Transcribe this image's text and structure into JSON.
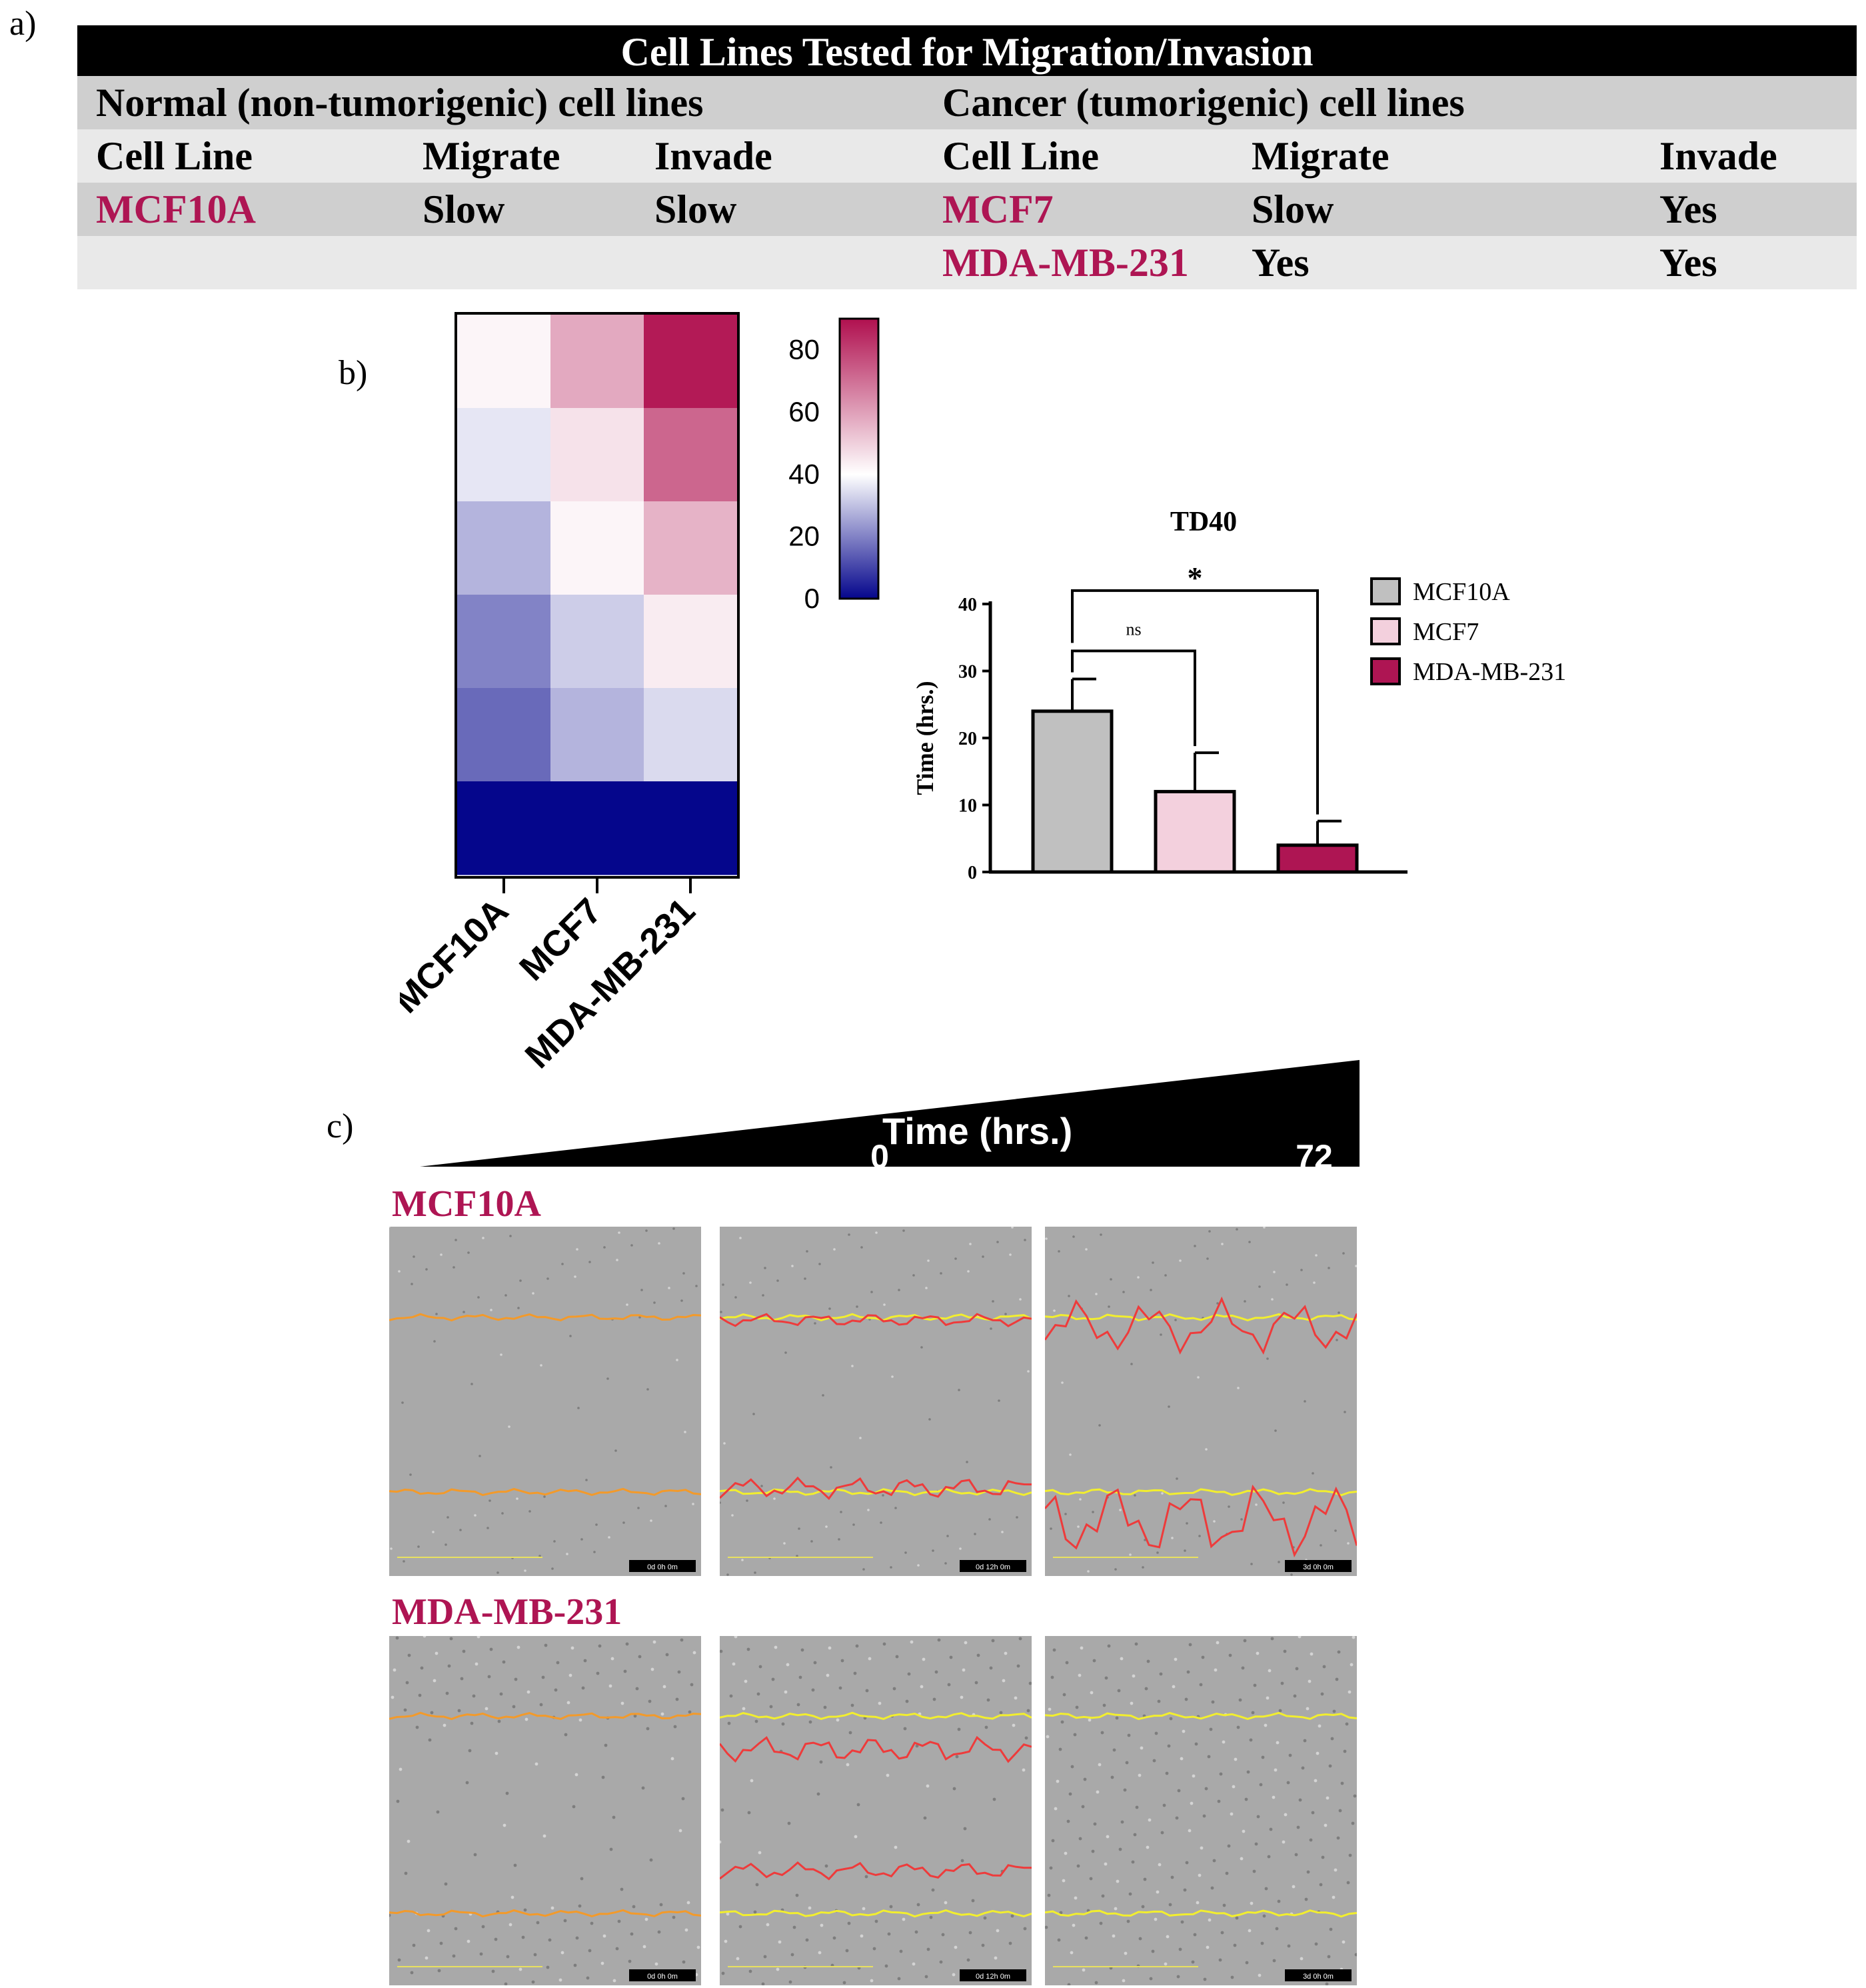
{
  "panels": {
    "a": "a)",
    "b": "b)",
    "c": "c)"
  },
  "table": {
    "title": "Cell Lines Tested for Migration/Invasion",
    "normal_header": "Normal (non-tumorigenic) cell lines",
    "cancer_header": "Cancer (tumorigenic) cell lines",
    "columns": {
      "cell_line": "Cell Line",
      "migrate": "Migrate",
      "invade": "Invade"
    },
    "normal_rows": [
      {
        "cell_line": "MCF10A",
        "migrate": "Slow",
        "invade": "Slow"
      }
    ],
    "cancer_rows": [
      {
        "cell_line": "MCF7",
        "migrate": "Slow",
        "invade": "Yes"
      },
      {
        "cell_line": "MDA-MB-231",
        "migrate": "Yes",
        "invade": "Yes"
      }
    ]
  },
  "chart_data": [
    {
      "type": "heatmap",
      "x_categories": [
        "MCF10A",
        "MCF7",
        "MDA-MB-231"
      ],
      "rows_top_to_bottom": [
        [
          42,
          58,
          88
        ],
        [
          36,
          46,
          72
        ],
        [
          28,
          42,
          56
        ],
        [
          20,
          32,
          44
        ],
        [
          16,
          28,
          34
        ],
        [
          0,
          0,
          0
        ]
      ],
      "colorbar": {
        "min": 0,
        "max": 90,
        "ticks": [
          0,
          20,
          40,
          60,
          80
        ],
        "low_color": "#05068c",
        "mid_color": "#ffffff",
        "high_color": "#b0104f",
        "mid_value": 40
      }
    },
    {
      "type": "bar",
      "title": "TD40",
      "ylabel": "Time (hrs.)",
      "ylim": [
        0,
        40
      ],
      "yticks": [
        0,
        10,
        20,
        30,
        40
      ],
      "categories": [
        "MCF10A",
        "MCF7",
        "MDA-MB-231"
      ],
      "values": [
        24,
        12,
        4
      ],
      "errors": [
        4.8,
        5.8,
        3.6
      ],
      "colors": [
        "#c0c0c0",
        "#f3d0dd",
        "#ae1553"
      ],
      "significance": [
        {
          "from": "MCF10A",
          "to": "MCF7",
          "label": "ns"
        },
        {
          "from": "MCF10A",
          "to": "MDA-MB-231",
          "label": "*"
        }
      ],
      "legend": [
        "MCF10A",
        "MCF7",
        "MDA-MB-231"
      ]
    }
  ],
  "scratch_assay": {
    "time_label": "Time (hrs.)",
    "time_start": "0",
    "time_end": "72",
    "rows": [
      {
        "label": "MCF10A",
        "stamps": [
          "0d 0h 0m",
          "0d 12h 0m",
          "3d 0h 0m"
        ]
      },
      {
        "label": "MDA-MB-231",
        "stamps": [
          "0d 0h 0m",
          "0d 12h 0m",
          "3d 0h 0m"
        ]
      }
    ]
  },
  "colors": {
    "accent": "#ae1553",
    "yellow_line": "#f2ee2e",
    "orange_line": "#f39a2a",
    "red_line": "#ee3b3b"
  }
}
